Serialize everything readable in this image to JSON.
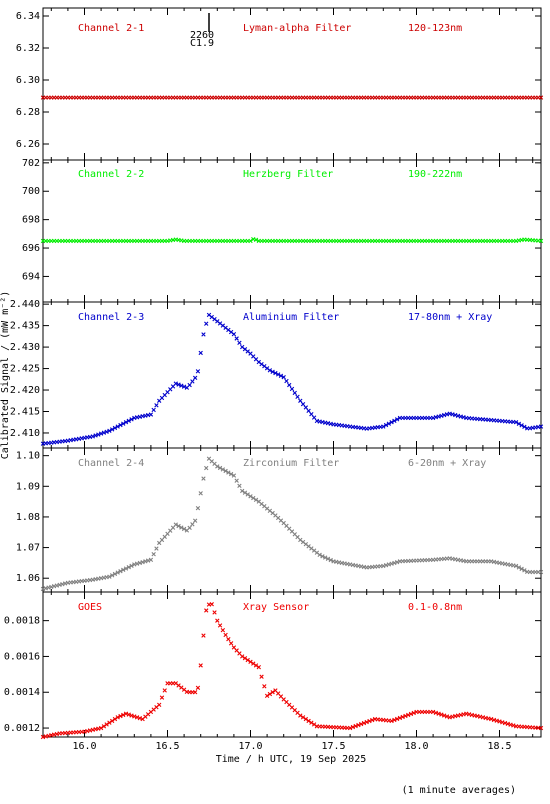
{
  "figure": {
    "xlabel": "Time / h UTC, 19 Sep 2025",
    "ylabel": "Calibrated Signal / (mW m⁻²)",
    "footnote": "(1 minute averages)",
    "marker_top": "2260",
    "marker_sub": "C1.9"
  },
  "chart_data": [
    {
      "type": "scatter",
      "channel": "Channel 2-1",
      "filter": "Lyman-alpha Filter",
      "band": "120-123nm",
      "color": "#cc0000",
      "xlim": [
        15.75,
        18.75
      ],
      "ylim": [
        6.25,
        6.345
      ],
      "yticks": [
        "6.26",
        "6.28",
        "6.30",
        "6.32",
        "6.34"
      ],
      "xticks": [
        16.0,
        16.5,
        17.0,
        17.5,
        18.0,
        18.5
      ],
      "points": [
        [
          15.75,
          6.289
        ],
        [
          18.75,
          6.289
        ]
      ]
    },
    {
      "type": "scatter",
      "channel": "Channel 2-2",
      "filter": "Herzberg Filter",
      "band": "190-222nm",
      "color": "#00ee00",
      "xlim": [
        15.75,
        18.75
      ],
      "ylim": [
        692.2,
        702.2
      ],
      "yticks": [
        "694",
        "696",
        "698",
        "700",
        "702"
      ],
      "xticks": [
        16.0,
        16.5,
        17.0,
        17.5,
        18.0,
        18.5
      ],
      "points": [
        [
          15.75,
          696.5
        ],
        [
          16.5,
          696.5
        ],
        [
          16.55,
          696.6
        ],
        [
          16.6,
          696.5
        ],
        [
          17.0,
          696.5
        ],
        [
          17.02,
          696.65
        ],
        [
          17.05,
          696.5
        ],
        [
          18.6,
          696.5
        ],
        [
          18.65,
          696.6
        ],
        [
          18.75,
          696.5
        ]
      ]
    },
    {
      "type": "scatter",
      "channel": "Channel 2-3",
      "filter": "Aluminium Filter",
      "band": "17-80nm + Xray",
      "color": "#0000cc",
      "xlim": [
        15.75,
        18.75
      ],
      "ylim": [
        2.4065,
        2.4405
      ],
      "yticks": [
        "2.410",
        "2.415",
        "2.420",
        "2.425",
        "2.430",
        "2.435",
        "2.440"
      ],
      "xticks": [
        16.0,
        16.5,
        17.0,
        17.5,
        18.0,
        18.5
      ],
      "points": [
        [
          15.75,
          2.4075
        ],
        [
          15.9,
          2.4082
        ],
        [
          16.05,
          2.4092
        ],
        [
          16.15,
          2.4105
        ],
        [
          16.3,
          2.4135
        ],
        [
          16.4,
          2.4143
        ],
        [
          16.45,
          2.4175
        ],
        [
          16.55,
          2.4215
        ],
        [
          16.62,
          2.4205
        ],
        [
          16.68,
          2.4235
        ],
        [
          16.72,
          2.4338
        ],
        [
          16.75,
          2.4375
        ],
        [
          16.8,
          2.436
        ],
        [
          16.9,
          2.433
        ],
        [
          16.95,
          2.43
        ],
        [
          17.0,
          2.4285
        ],
        [
          17.05,
          2.4265
        ],
        [
          17.12,
          2.4245
        ],
        [
          17.2,
          2.423
        ],
        [
          17.3,
          2.4175
        ],
        [
          17.4,
          2.4128
        ],
        [
          17.5,
          2.412
        ],
        [
          17.7,
          2.411
        ],
        [
          17.8,
          2.4115
        ],
        [
          17.9,
          2.4135
        ],
        [
          18.1,
          2.4135
        ],
        [
          18.2,
          2.4145
        ],
        [
          18.3,
          2.4135
        ],
        [
          18.45,
          2.413
        ],
        [
          18.6,
          2.4125
        ],
        [
          18.67,
          2.411
        ],
        [
          18.75,
          2.4115
        ]
      ]
    },
    {
      "type": "scatter",
      "channel": "Channel 2-4",
      "filter": "Zirconium Filter",
      "band": "6-20nm + Xray",
      "color": "#808080",
      "xlim": [
        15.75,
        18.75
      ],
      "ylim": [
        1.0555,
        1.1025
      ],
      "yticks": [
        "1.06",
        "1.07",
        "1.08",
        "1.09",
        "1.10"
      ],
      "xticks": [
        16.0,
        16.5,
        17.0,
        17.5,
        18.0,
        18.5
      ],
      "points": [
        [
          15.75,
          1.0565
        ],
        [
          15.9,
          1.0585
        ],
        [
          16.05,
          1.0595
        ],
        [
          16.15,
          1.0605
        ],
        [
          16.3,
          1.0645
        ],
        [
          16.4,
          1.066
        ],
        [
          16.45,
          1.0715
        ],
        [
          16.55,
          1.0775
        ],
        [
          16.62,
          1.0755
        ],
        [
          16.67,
          1.079
        ],
        [
          16.72,
          1.0935
        ],
        [
          16.75,
          1.099
        ],
        [
          16.8,
          1.0965
        ],
        [
          16.9,
          1.0935
        ],
        [
          16.95,
          1.0885
        ],
        [
          17.05,
          1.085
        ],
        [
          17.15,
          1.0805
        ],
        [
          17.2,
          1.078
        ],
        [
          17.3,
          1.0725
        ],
        [
          17.42,
          1.0675
        ],
        [
          17.5,
          1.0655
        ],
        [
          17.7,
          1.0635
        ],
        [
          17.8,
          1.064
        ],
        [
          17.9,
          1.0655
        ],
        [
          18.1,
          1.066
        ],
        [
          18.2,
          1.0665
        ],
        [
          18.3,
          1.0655
        ],
        [
          18.45,
          1.0655
        ],
        [
          18.6,
          1.064
        ],
        [
          18.67,
          1.062
        ],
        [
          18.75,
          1.062
        ]
      ]
    },
    {
      "type": "scatter",
      "channel": "GOES",
      "filter": "Xray Sensor",
      "band": "0.1-0.8nm",
      "color": "#ee0000",
      "xlim": [
        15.75,
        18.75
      ],
      "ylim": [
        0.00115,
        0.00196
      ],
      "yticks": [
        "0.0012",
        "0.0014",
        "0.0016",
        "0.0018"
      ],
      "xticks": [
        16.0,
        16.5,
        17.0,
        17.5,
        18.0,
        18.5
      ],
      "points": [
        [
          15.75,
          0.00115
        ],
        [
          15.85,
          0.00117
        ],
        [
          16.0,
          0.00118
        ],
        [
          16.1,
          0.0012
        ],
        [
          16.2,
          0.00126
        ],
        [
          16.25,
          0.00128
        ],
        [
          16.35,
          0.00125
        ],
        [
          16.45,
          0.00133
        ],
        [
          16.5,
          0.00145
        ],
        [
          16.55,
          0.00145
        ],
        [
          16.62,
          0.0014
        ],
        [
          16.68,
          0.0014
        ],
        [
          16.7,
          0.00155
        ],
        [
          16.73,
          0.00185
        ],
        [
          16.76,
          0.00191
        ],
        [
          16.8,
          0.0018
        ],
        [
          16.85,
          0.00172
        ],
        [
          16.9,
          0.00165
        ],
        [
          16.95,
          0.0016
        ],
        [
          17.05,
          0.00154
        ],
        [
          17.1,
          0.00138
        ],
        [
          17.15,
          0.00141
        ],
        [
          17.2,
          0.00136
        ],
        [
          17.3,
          0.00127
        ],
        [
          17.4,
          0.00121
        ],
        [
          17.6,
          0.0012
        ],
        [
          17.75,
          0.00125
        ],
        [
          17.85,
          0.00124
        ],
        [
          18.0,
          0.00129
        ],
        [
          18.1,
          0.00129
        ],
        [
          18.2,
          0.00126
        ],
        [
          18.3,
          0.00128
        ],
        [
          18.45,
          0.00125
        ],
        [
          18.6,
          0.00121
        ],
        [
          18.75,
          0.0012
        ]
      ]
    }
  ]
}
